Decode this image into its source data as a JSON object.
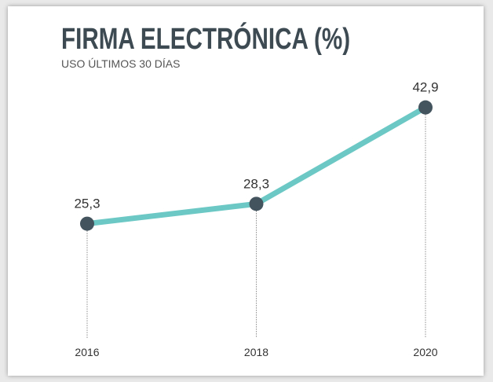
{
  "chart_data": {
    "type": "line",
    "title": "FIRMA ELECTRÓNICA (%)",
    "subtitle": "USO ÚLTIMOS 30 DÍAS",
    "x": [
      2016,
      2018,
      2020
    ],
    "series": [
      {
        "name": "Firma electrónica",
        "color": "#6cc8c4",
        "marker_color": "#44545e",
        "values": [
          25.3,
          28.3,
          42.9
        ],
        "value_labels": [
          "25,3",
          "28,3",
          "42,9"
        ]
      }
    ],
    "xlim": [
      2016,
      2020
    ],
    "xticks": [
      2016,
      2018,
      2020
    ],
    "ylim": [
      8,
      45
    ]
  }
}
